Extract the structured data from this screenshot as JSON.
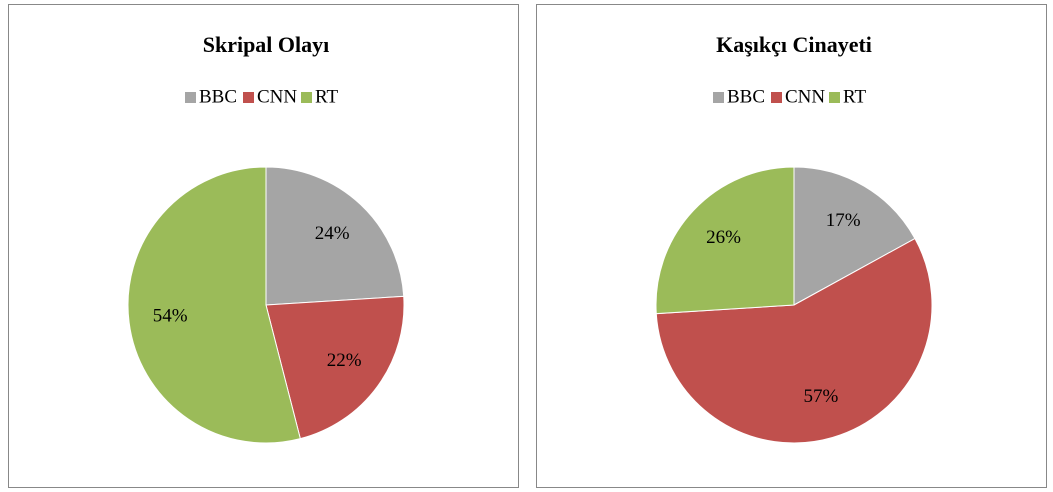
{
  "chart_data": [
    {
      "type": "pie",
      "title": "Skripal Olayı",
      "categories": [
        "BBC",
        "CNN",
        "RT"
      ],
      "values": [
        24,
        22,
        54
      ],
      "value_labels": [
        "24%",
        "22%",
        "54%"
      ],
      "colors": [
        "#a5a5a5",
        "#c0504d",
        "#9bbb59"
      ],
      "legend": "top"
    },
    {
      "type": "pie",
      "title": "Kaşıkçı Cinayeti",
      "categories": [
        "BBC",
        "CNN",
        "RT"
      ],
      "values": [
        17,
        57,
        26
      ],
      "value_labels": [
        "17%",
        "57%",
        "26%"
      ],
      "colors": [
        "#a5a5a5",
        "#c0504d",
        "#9bbb59"
      ],
      "legend": "top"
    }
  ]
}
